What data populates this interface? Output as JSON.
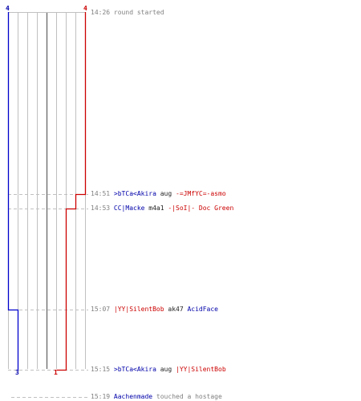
{
  "counts": {
    "blue_start": "4",
    "red_start": "4",
    "blue_end": "3",
    "red_end": "1"
  },
  "colors": {
    "blue_team": "#0000cc",
    "red_team": "#cc0000",
    "grid": "#c0c0c0",
    "dashed": "#c0c0c0",
    "time": "#808080"
  },
  "events": [
    {
      "time": "14:26",
      "text": "round started"
    },
    {
      "time": "14:51",
      "killer": ">bTCa<Akira",
      "weapon": "aug",
      "victim": "-=JMfYC=-asmo"
    },
    {
      "time": "14:53",
      "killer": "CC|Macke",
      "weapon": "m4a1",
      "victim": "-|SoI|- Doc Green"
    },
    {
      "time": "15:07",
      "killer": "|YY|SilentBob",
      "weapon": "ak47",
      "victim": "AcidFace"
    },
    {
      "time": "15:15",
      "killer": ">bTCa<Akira",
      "weapon": "aug",
      "victim": "|YY|SilentBob"
    },
    {
      "time": "15:19",
      "player": "Aachenmade",
      "text": "touched a hostage"
    }
  ]
}
